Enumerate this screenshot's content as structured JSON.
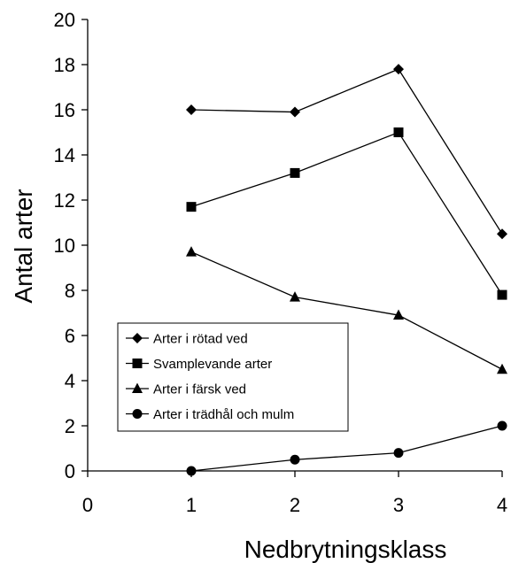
{
  "chart_data": {
    "type": "line",
    "xlabel": "Nedbrytningsklass",
    "ylabel": "Antal arter",
    "xlim": [
      0,
      4
    ],
    "ylim": [
      0,
      20
    ],
    "x_ticks": [
      0,
      1,
      2,
      3,
      4
    ],
    "y_ticks": [
      0,
      2,
      4,
      6,
      8,
      10,
      12,
      14,
      16,
      18,
      20
    ],
    "grid": false,
    "legend_position": "lower-left",
    "x": [
      1,
      2,
      3,
      4
    ],
    "series": [
      {
        "name": "Arter i rötad ved",
        "marker": "diamond",
        "values": [
          16.0,
          15.9,
          17.8,
          10.5
        ]
      },
      {
        "name": "Svamplevande arter",
        "marker": "square",
        "values": [
          11.7,
          13.2,
          15.0,
          7.8
        ]
      },
      {
        "name": "Arter i färsk ved",
        "marker": "triangle",
        "values": [
          9.7,
          7.7,
          6.9,
          4.5
        ]
      },
      {
        "name": "Arter i trädhål och mulm",
        "marker": "circle",
        "values": [
          0.0,
          0.5,
          0.8,
          2.0
        ]
      }
    ],
    "colors": {
      "line": "#000000",
      "axis": "#000000",
      "background": "#ffffff"
    }
  }
}
